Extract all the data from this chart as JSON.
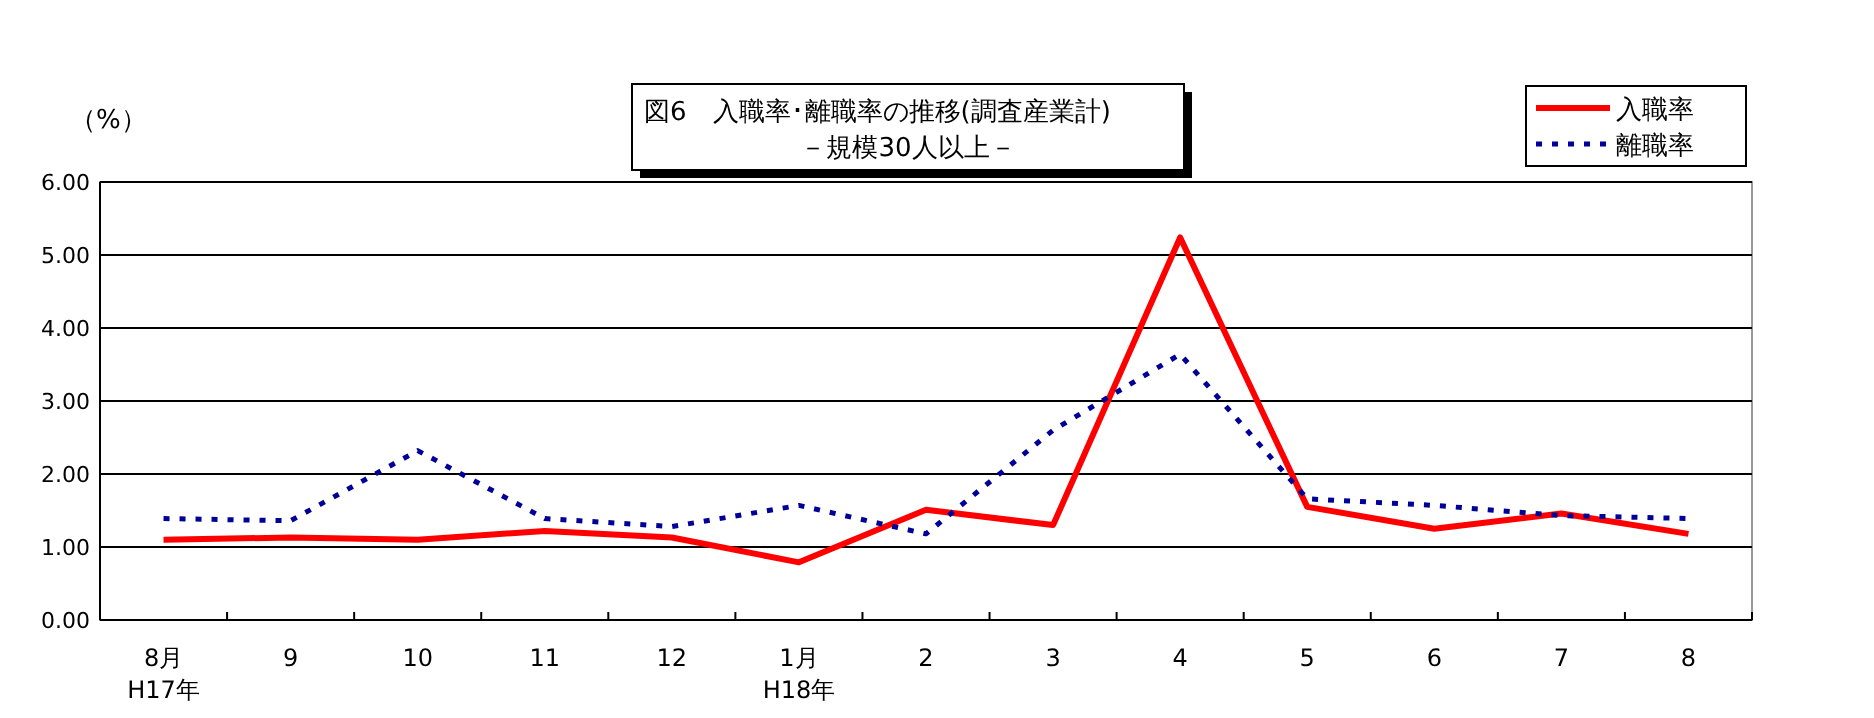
{
  "chart_data": {
    "type": "line",
    "title": "図6　入職率･離職率の推移(調査産業計)",
    "subtitle": "－規模30人以上－",
    "ylabel": "（%）",
    "categories": [
      "8月\nH17年",
      "9",
      "10",
      "11",
      "12",
      "1月\nH18年",
      "2",
      "3",
      "4",
      "5",
      "6",
      "7",
      "8"
    ],
    "series": [
      {
        "name": "入職率",
        "color": "#ff0000",
        "line_style": "solid",
        "values": [
          1.1,
          1.13,
          1.1,
          1.22,
          1.13,
          0.79,
          1.51,
          1.3,
          5.24,
          1.55,
          1.25,
          1.46,
          1.18
        ]
      },
      {
        "name": "離職率",
        "color": "#000099",
        "line_style": "dotted",
        "values": [
          1.39,
          1.36,
          2.32,
          1.39,
          1.28,
          1.57,
          1.18,
          2.6,
          3.64,
          1.66,
          1.57,
          1.43,
          1.39
        ]
      }
    ],
    "ylim": [
      0,
      6
    ],
    "yticks": [
      {
        "value": 0,
        "label": "0.00"
      },
      {
        "value": 1,
        "label": "1.00"
      },
      {
        "value": 2,
        "label": "2.00"
      },
      {
        "value": 3,
        "label": "3.00"
      },
      {
        "value": 4,
        "label": "4.00"
      },
      {
        "value": 5,
        "label": "5.00"
      },
      {
        "value": 6,
        "label": "6.00"
      }
    ],
    "grid": "y",
    "legend": "top right",
    "marker": "none"
  }
}
